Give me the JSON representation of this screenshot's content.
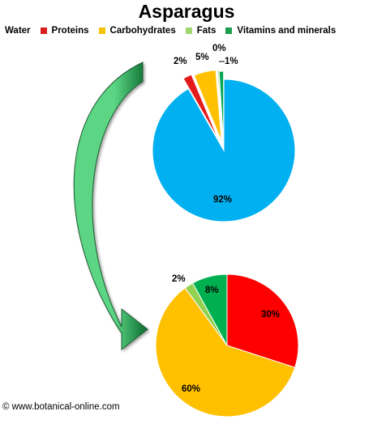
{
  "title": "Asparagus",
  "footer": "© www.botanical-online.com",
  "legend": [
    {
      "label": "Water",
      "color": ""
    },
    {
      "label": "Proteins",
      "color": "#d81e1e"
    },
    {
      "label": "Carbohydrates",
      "color": "#f5c400"
    },
    {
      "label": "Fats",
      "color": "#9ed66f"
    },
    {
      "label": "Vitamins and minerals",
      "color": "#1c9e4f"
    }
  ],
  "arrow_colors": {
    "light": "#5cd685",
    "dark": "#0b6b2f"
  },
  "chart_data": [
    {
      "type": "pie",
      "title": "",
      "slices": [
        {
          "name": "Water",
          "value": 92,
          "label": "92%",
          "color": "#00b0f0"
        },
        {
          "name": "Proteins",
          "value": 2,
          "label": "2%",
          "color": "#e31b1b"
        },
        {
          "name": "Carbohydrates",
          "value": 5,
          "label": "5%",
          "color": "#ffc000"
        },
        {
          "name": "Fats",
          "value": 0.3,
          "label": "0%",
          "color": "#92d050"
        },
        {
          "name": "Vitamins and minerals",
          "value": 1,
          "label": "1%",
          "color": "#00a651"
        }
      ]
    },
    {
      "type": "pie",
      "title": "",
      "slices": [
        {
          "name": "Proteins",
          "value": 30,
          "label": "30%",
          "color": "#ff0000"
        },
        {
          "name": "Carbohydrates",
          "value": 60,
          "label": "60%",
          "color": "#ffc000"
        },
        {
          "name": "Fats",
          "value": 2,
          "label": "2%",
          "color": "#92d050"
        },
        {
          "name": "Vitamins and minerals",
          "value": 8,
          "label": "8%",
          "color": "#00b050"
        }
      ]
    }
  ]
}
